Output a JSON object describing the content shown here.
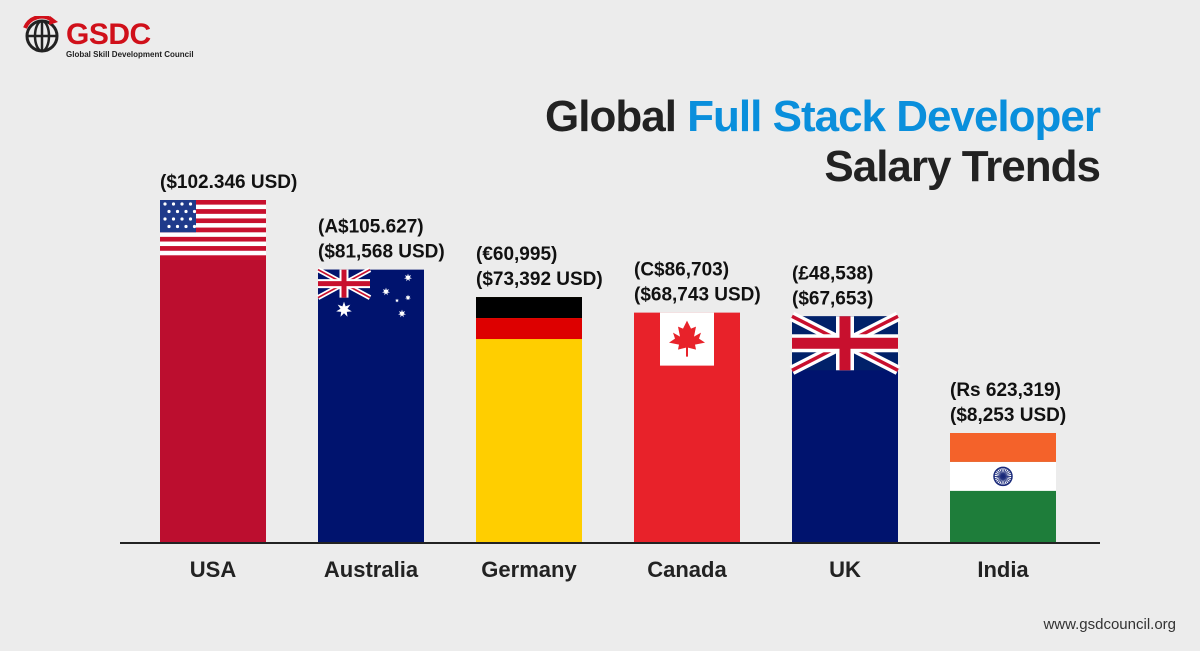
{
  "logo": {
    "name": "GSDC",
    "tagline": "Global Skill Development Council",
    "icon": "globe-arrow-icon",
    "color": "#d0101a"
  },
  "title": {
    "part1": "Global ",
    "accent": "Full Stack Developer",
    "line2": "Salary Trends",
    "accent_color": "#0a8fdc"
  },
  "website": "www.gsdcouncil.org",
  "chart_data": {
    "type": "bar",
    "title": "Global Full Stack Developer Salary Trends",
    "categories": [
      "USA",
      "Australia",
      "Germany",
      "Canada",
      "UK",
      "India"
    ],
    "values": [
      102346,
      81568,
      73392,
      68743,
      67653,
      8253
    ],
    "value_labels": [
      [
        "($102.346 USD)"
      ],
      [
        "(A$105.627)",
        "($81,568 USD)"
      ],
      [
        "(€60,995)",
        "($73,392 USD)"
      ],
      [
        "(C$86,703)",
        "($68,743 USD)"
      ],
      [
        "(£48,538)",
        "($67,653)"
      ],
      [
        "(Rs 623,319)",
        "($8,253 USD)"
      ]
    ],
    "bar_styles": [
      "flag-usa",
      "flag-australia",
      "flag-germany",
      "flag-canada",
      "flag-uk",
      "flag-india"
    ],
    "xlabel": "",
    "ylabel": "",
    "grid": false
  }
}
